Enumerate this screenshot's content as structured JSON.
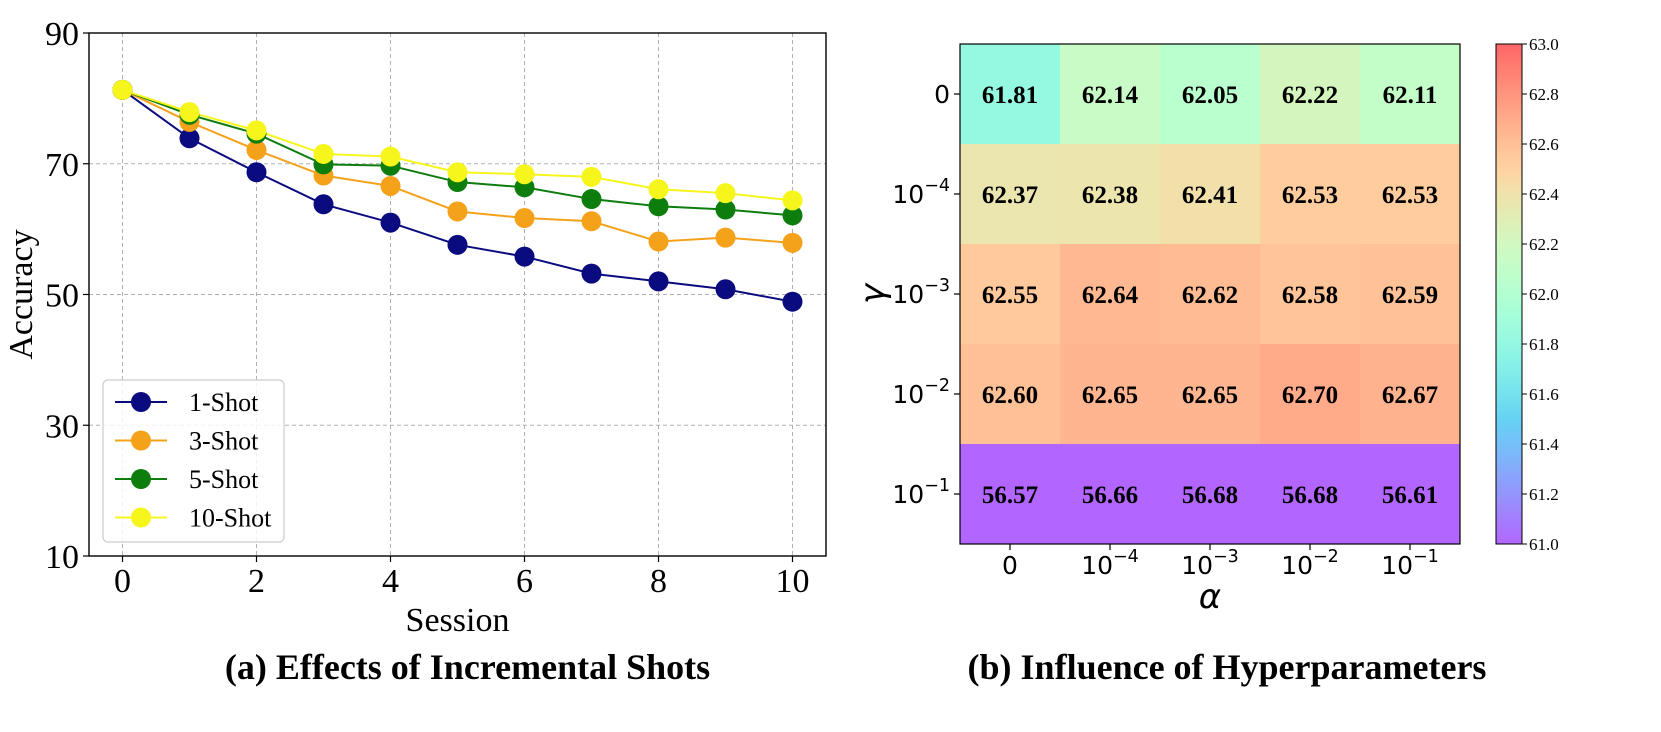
{
  "chart_data": [
    {
      "type": "line",
      "caption": "(a) Effects of Incremental Shots",
      "xlabel": "Session",
      "ylabel": "Accuracy",
      "xlim": [
        -0.5,
        10.5
      ],
      "ylim": [
        10,
        90
      ],
      "xticks": [
        0,
        2,
        4,
        6,
        8,
        10
      ],
      "yticks": [
        10,
        30,
        50,
        70,
        90
      ],
      "grid": true,
      "legend_position": "lower-left",
      "x": [
        0,
        1,
        2,
        3,
        4,
        5,
        6,
        7,
        8,
        9,
        10
      ],
      "series": [
        {
          "name": "1-Shot",
          "color": "#0b0b80",
          "values": [
            81.3,
            73.9,
            68.7,
            63.8,
            61.0,
            57.6,
            55.8,
            53.2,
            52.0,
            50.8,
            48.9
          ]
        },
        {
          "name": "3-Shot",
          "color": "#f5a21b",
          "values": [
            81.3,
            76.4,
            72.1,
            68.2,
            66.6,
            62.7,
            61.7,
            61.2,
            58.1,
            58.7,
            57.9
          ]
        },
        {
          "name": "5-Shot",
          "color": "#0d7d0d",
          "values": [
            81.3,
            77.5,
            74.6,
            69.9,
            69.7,
            67.2,
            66.4,
            64.6,
            63.5,
            63.0,
            62.1
          ]
        },
        {
          "name": "10-Shot",
          "color": "#f6f61c",
          "values": [
            81.3,
            77.9,
            75.1,
            71.5,
            71.1,
            68.7,
            68.4,
            68.0,
            66.1,
            65.5,
            64.4
          ]
        }
      ]
    },
    {
      "type": "heatmap",
      "caption": "(b) Influence of Hyperparameters",
      "xlabel": "α",
      "ylabel": "γ",
      "x_categories": [
        {
          "base": "0",
          "exp": ""
        },
        {
          "base": "10",
          "exp": "−4"
        },
        {
          "base": "10",
          "exp": "−3"
        },
        {
          "base": "10",
          "exp": "−2"
        },
        {
          "base": "10",
          "exp": "−1"
        }
      ],
      "y_categories": [
        {
          "base": "0",
          "exp": ""
        },
        {
          "base": "10",
          "exp": "−4"
        },
        {
          "base": "10",
          "exp": "−3"
        },
        {
          "base": "10",
          "exp": "−2"
        },
        {
          "base": "10",
          "exp": "−1"
        }
      ],
      "values": [
        [
          61.81,
          62.14,
          62.05,
          62.22,
          62.11
        ],
        [
          62.37,
          62.38,
          62.41,
          62.53,
          62.53
        ],
        [
          62.55,
          62.64,
          62.62,
          62.58,
          62.59
        ],
        [
          62.6,
          62.65,
          62.65,
          62.7,
          62.67
        ],
        [
          56.57,
          56.66,
          56.68,
          56.68,
          56.61
        ]
      ],
      "value_labels": [
        [
          "61.81",
          "62.14",
          "62.05",
          "62.22",
          "62.11"
        ],
        [
          "62.37",
          "62.38",
          "62.41",
          "62.53",
          "62.53"
        ],
        [
          "62.55",
          "62.64",
          "62.62",
          "62.58",
          "62.59"
        ],
        [
          "62.60",
          "62.65",
          "62.65",
          "62.70",
          "62.67"
        ],
        [
          "56.57",
          "56.66",
          "56.68",
          "56.68",
          "56.61"
        ]
      ],
      "colorbar": {
        "min": 61.0,
        "max": 63.0,
        "colormap": "rainbow",
        "alpha": 0.6,
        "ticks": [
          "61.0",
          "61.2",
          "61.4",
          "61.6",
          "61.8",
          "62.0",
          "62.2",
          "62.4",
          "62.6",
          "62.8",
          "63.0"
        ]
      }
    }
  ]
}
